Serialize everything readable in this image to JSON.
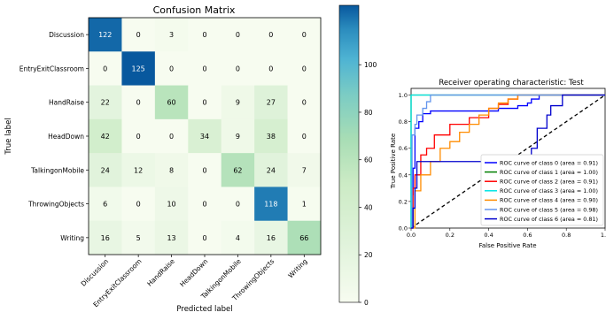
{
  "chart_data": [
    {
      "type": "heatmap",
      "title": "Confusion Matrix",
      "xlabel": "Predicted label",
      "ylabel": "True label",
      "labels": [
        "Discussion",
        "EntryExitClassroom",
        "HandRaise",
        "HeadDown",
        "TalkingonMobile",
        "ThrowingObjects",
        "Writing"
      ],
      "matrix": [
        [
          122,
          0,
          3,
          0,
          0,
          0,
          0
        ],
        [
          0,
          125,
          0,
          0,
          0,
          0,
          0
        ],
        [
          22,
          0,
          60,
          0,
          9,
          27,
          0
        ],
        [
          42,
          0,
          0,
          34,
          9,
          38,
          0
        ],
        [
          24,
          12,
          8,
          0,
          62,
          24,
          7
        ],
        [
          6,
          0,
          10,
          0,
          0,
          118,
          1
        ],
        [
          16,
          5,
          13,
          0,
          4,
          16,
          66
        ]
      ],
      "colorbar": {
        "ticks": [
          0,
          20,
          40,
          60,
          80,
          100
        ],
        "range": [
          0,
          125
        ]
      },
      "colors": {
        "low": "#f7fcf0",
        "mid": "#7bccc4",
        "high": "#084081"
      }
    },
    {
      "type": "line",
      "title": "Receiver operating characteristic: Test",
      "xlabel": "False Positive Rate",
      "ylabel": "True Positive Rate",
      "xlim": [
        0.0,
        1.0
      ],
      "ylim": [
        0.0,
        1.05
      ],
      "xticks": [
        "0.0",
        "0.2",
        "0.4",
        "0.6",
        "0.8",
        "1.0"
      ],
      "yticks": [
        "0.0",
        "0.2",
        "0.4",
        "0.6",
        "0.8",
        "1.0"
      ],
      "legend_position": "lower-right",
      "series": [
        {
          "name": "ROC curve of class 0 (area = 0.91)",
          "color": "#0000ff",
          "points": [
            [
              0,
              0
            ],
            [
              0.005,
              0.25
            ],
            [
              0.01,
              0.45
            ],
            [
              0.02,
              0.75
            ],
            [
              0.04,
              0.8
            ],
            [
              0.06,
              0.86
            ],
            [
              0.1,
              0.88
            ],
            [
              0.3,
              0.88
            ],
            [
              0.45,
              0.9
            ],
            [
              0.55,
              0.92
            ],
            [
              0.6,
              0.94
            ],
            [
              0.62,
              0.97
            ],
            [
              0.66,
              1.0
            ],
            [
              1,
              1
            ]
          ]
        },
        {
          "name": "ROC curve of class 1 (area = 1.00)",
          "color": "#008000",
          "points": [
            [
              0,
              0
            ],
            [
              0,
              1.0
            ],
            [
              1,
              1.0
            ]
          ]
        },
        {
          "name": "ROC curve of class 2 (area = 0.91)",
          "color": "#ff0000",
          "points": [
            [
              0,
              0
            ],
            [
              0.01,
              0.3
            ],
            [
              0.02,
              0.4
            ],
            [
              0.05,
              0.55
            ],
            [
              0.08,
              0.6
            ],
            [
              0.12,
              0.7
            ],
            [
              0.2,
              0.78
            ],
            [
              0.3,
              0.83
            ],
            [
              0.4,
              0.9
            ],
            [
              0.45,
              0.93
            ],
            [
              0.5,
              0.97
            ],
            [
              0.55,
              1.0
            ],
            [
              1,
              1
            ]
          ]
        },
        {
          "name": "ROC curve of class 3 (area = 1.00)",
          "color": "#00e5e5",
          "points": [
            [
              0,
              0
            ],
            [
              0,
              1.0
            ],
            [
              1,
              1.0
            ]
          ]
        },
        {
          "name": "ROC curve of class 4 (area = 0.90)",
          "color": "#ff8c00",
          "points": [
            [
              0,
              0
            ],
            [
              0.02,
              0.28
            ],
            [
              0.05,
              0.4
            ],
            [
              0.1,
              0.5
            ],
            [
              0.15,
              0.6
            ],
            [
              0.2,
              0.65
            ],
            [
              0.25,
              0.72
            ],
            [
              0.3,
              0.78
            ],
            [
              0.35,
              0.85
            ],
            [
              0.4,
              0.9
            ],
            [
              0.45,
              0.94
            ],
            [
              0.5,
              0.97
            ],
            [
              0.55,
              1.0
            ],
            [
              1,
              1
            ]
          ]
        },
        {
          "name": "ROC curve of class 5 (area = 0.98)",
          "color": "#6495ed",
          "points": [
            [
              0,
              0
            ],
            [
              0.005,
              0.7
            ],
            [
              0.02,
              0.78
            ],
            [
              0.03,
              0.85
            ],
            [
              0.06,
              0.9
            ],
            [
              0.08,
              0.95
            ],
            [
              0.1,
              1.0
            ],
            [
              1,
              1
            ]
          ]
        },
        {
          "name": "ROC curve of class 6 (area = 0.81)",
          "color": "#0000cd",
          "points": [
            [
              0,
              0
            ],
            [
              0.01,
              0.15
            ],
            [
              0.02,
              0.3
            ],
            [
              0.03,
              0.5
            ],
            [
              0.1,
              0.5
            ],
            [
              0.2,
              0.5
            ],
            [
              0.6,
              0.5
            ],
            [
              0.62,
              0.6
            ],
            [
              0.65,
              0.75
            ],
            [
              0.7,
              0.85
            ],
            [
              0.72,
              0.92
            ],
            [
              0.78,
              1.0
            ],
            [
              1,
              1
            ]
          ]
        }
      ],
      "diagonal_color": "#000000"
    }
  ]
}
